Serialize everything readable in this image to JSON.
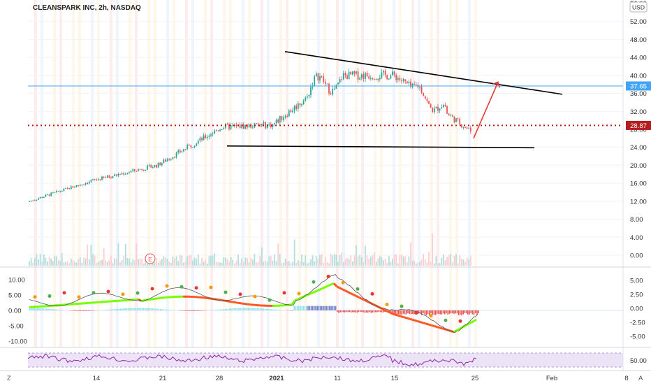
{
  "header": {
    "title": "CLEANSPARK INC, 2h, NASDAQ",
    "currency": "USD"
  },
  "main_price_axis": {
    "ticks": [
      "52.00",
      "48.00",
      "44.00",
      "40.00",
      "36.00",
      "32.00",
      "28.00",
      "24.00",
      "20.00",
      "16.00",
      "12.00",
      "8.00",
      "4.00",
      "0.00"
    ],
    "top_clipped_label": "56.00"
  },
  "price_badges": {
    "horizontal_line_value": "37.65",
    "last_price_value": "28.87"
  },
  "oscillator_left_axis": {
    "ticks": [
      "10.00",
      "5.00",
      "0.00",
      "-5.00",
      "-10.00"
    ]
  },
  "oscillator_right_axis": {
    "ticks": [
      "5.00",
      "2.50",
      "0.00",
      "-2.50",
      "-5.00"
    ]
  },
  "rsi_axis": {
    "ticks": [
      "50.00"
    ]
  },
  "time_axis": {
    "labels": [
      "14",
      "21",
      "28",
      "2021",
      "11",
      "15",
      "25",
      "Feb",
      "8"
    ]
  },
  "event_marker": {
    "label": "E"
  },
  "footer": {
    "left_icon_label": "Z",
    "right_icon_label": "A"
  },
  "colors": {
    "up": "#26a69a",
    "down": "#ef5350",
    "horizontal_line": "#42a5f5",
    "last_price_line": "#b71c1c",
    "projection_arrow": "#e53935",
    "trendline": "#000000",
    "rsi_line": "#8e24aa",
    "rsi_band": "#ede3f7"
  },
  "chart_data": {
    "type": "candlestick",
    "symbol": "CLEANSPARK INC",
    "interval": "2h",
    "exchange": "NASDAQ",
    "y_axis": {
      "min": 0,
      "max": 56,
      "unit": "USD"
    },
    "x_axis_labels": [
      "14",
      "21",
      "28",
      "2021",
      "11",
      "15",
      "25",
      "Feb",
      "8"
    ],
    "price_path": [
      {
        "x": "start",
        "close": 11.9
      },
      {
        "x": "14",
        "close": 16.5
      },
      {
        "x": "21",
        "close": 20.0
      },
      {
        "x": "28",
        "close": 28.5
      },
      {
        "x": "2021",
        "close": 29.0
      },
      {
        "x": "11",
        "close": 40.0
      },
      {
        "x": "15",
        "close": 40.0
      },
      {
        "x": "25",
        "close": 27.5
      }
    ],
    "horizontal_line": 37.65,
    "last_price": 28.87,
    "drawings": [
      {
        "type": "resistance_trendline",
        "from_price": 45.3,
        "to_price": 35.8
      },
      {
        "type": "support_line",
        "from_price": 24.3,
        "to_price": 23.9
      },
      {
        "type": "projection_arrow",
        "from_price": 26.0,
        "to_price": 38.5
      }
    ],
    "oscillator": {
      "left_range": [
        -10,
        10
      ],
      "right_range": [
        -5,
        5
      ]
    },
    "rsi": {
      "visible_level": 50
    }
  }
}
